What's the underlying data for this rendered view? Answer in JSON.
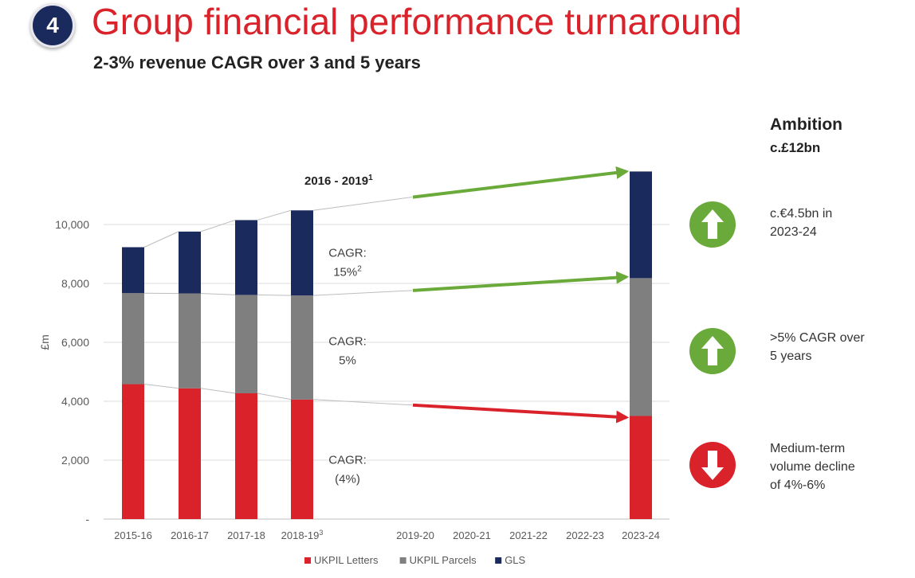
{
  "header": {
    "badge": "4",
    "title": "Group financial performance turnaround",
    "subtitle": "2-3% revenue CAGR over 3 and 5 years"
  },
  "chart_data": {
    "type": "bar",
    "stacked": true,
    "ylabel": "£m",
    "ylim": [
      0,
      12000
    ],
    "yticks": [
      {
        "value": 0,
        "label": "-"
      },
      {
        "value": 2000,
        "label": "2,000"
      },
      {
        "value": 4000,
        "label": "4,000"
      },
      {
        "value": 6000,
        "label": "6,000"
      },
      {
        "value": 8000,
        "label": "8,000"
      },
      {
        "value": 10000,
        "label": "10,000"
      }
    ],
    "categories": [
      "2015-16",
      "2016-17",
      "2017-18",
      "2018-19",
      "2019-20",
      "2020-21",
      "2021-22",
      "2022-23",
      "2023-24"
    ],
    "category_footnotes": [
      "",
      "",
      "",
      "3",
      "",
      "",
      "",
      "",
      ""
    ],
    "series": [
      {
        "name": "UKPIL Letters",
        "color": "#d9222a",
        "values": [
          4580,
          4440,
          4270,
          4060,
          null,
          null,
          null,
          null,
          3500
        ]
      },
      {
        "name": "UKPIL Parcels",
        "color": "#7f7f7f",
        "values": [
          3090,
          3220,
          3340,
          3530,
          null,
          null,
          null,
          null,
          4680
        ]
      },
      {
        "name": "GLS",
        "color": "#1b2a5c",
        "values": [
          1560,
          2100,
          2540,
          2890,
          null,
          null,
          null,
          null,
          3620
        ]
      }
    ],
    "period_label": "2016 - 2019",
    "period_footnote": "1",
    "annotations": [
      {
        "line1": "CAGR:",
        "line2": "15%",
        "footnote": "2",
        "series": "GLS",
        "y": 8900
      },
      {
        "line1": "CAGR:",
        "line2": "5%",
        "footnote": "",
        "series": "UKPIL Parcels",
        "y": 5900
      },
      {
        "line1": "CAGR:",
        "line2": "(4%)",
        "footnote": "",
        "series": "UKPIL Letters",
        "y": 1880
      }
    ],
    "trend_arrows": [
      {
        "series": "GLS",
        "from": 10930,
        "to": 11800,
        "color": "#6aaa3a"
      },
      {
        "series": "UKPIL Parcels",
        "from": 7760,
        "to": 8220,
        "color": "#6aaa3a"
      },
      {
        "series": "UKPIL Letters",
        "from": 3870,
        "to": 3450,
        "color": "#d9222a"
      }
    ],
    "legend_position": "bottom"
  },
  "ambition": {
    "title": "Ambition",
    "subtitle": "c.£12bn",
    "items": [
      {
        "direction": "up",
        "color": "#6aaa3a",
        "text": [
          "c.€4.5bn in",
          "2023-24"
        ]
      },
      {
        "direction": "up",
        "color": "#6aaa3a",
        "text": [
          ">5% CAGR over",
          "5 years"
        ]
      },
      {
        "direction": "down",
        "color": "#d9222a",
        "text": [
          "Medium-term",
          "volume decline",
          "of 4%-6%"
        ]
      }
    ]
  }
}
